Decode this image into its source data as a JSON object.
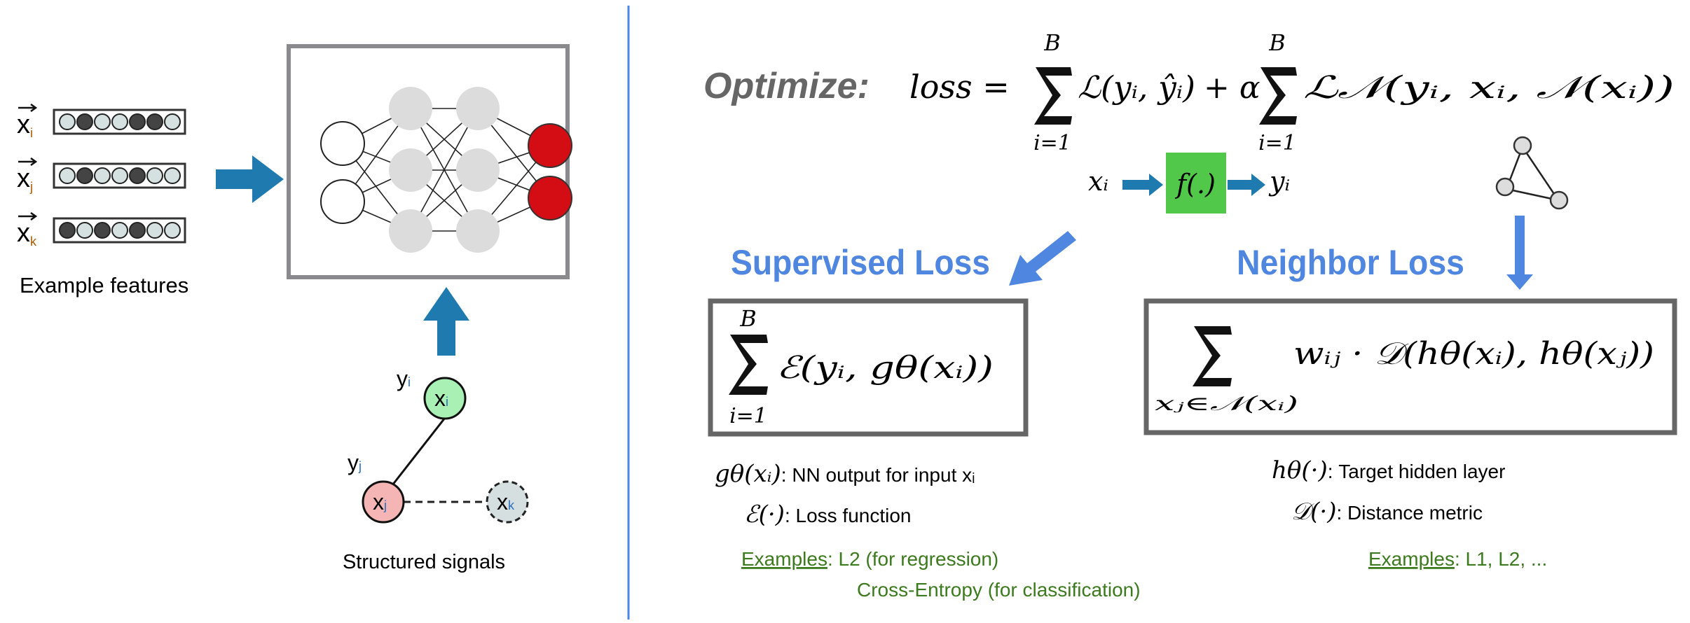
{
  "left": {
    "features": {
      "rows": [
        {
          "label": "x",
          "sub": "i",
          "pattern": [
            0,
            1,
            0,
            0,
            1,
            1,
            0
          ]
        },
        {
          "label": "x",
          "sub": "j",
          "pattern": [
            0,
            1,
            0,
            0,
            1,
            0,
            0
          ]
        },
        {
          "label": "x",
          "sub": "k",
          "pattern": [
            1,
            0,
            1,
            0,
            1,
            0,
            0
          ]
        }
      ],
      "caption": "Example features"
    },
    "graph": {
      "nodes": [
        {
          "label": "x",
          "sub": "i",
          "tag": "y",
          "tag_sub": "i"
        },
        {
          "label": "x",
          "sub": "j",
          "tag": "y",
          "tag_sub": "j"
        },
        {
          "label": "x",
          "sub": "k"
        }
      ],
      "caption": "Structured signals"
    }
  },
  "right": {
    "optimize_label": "Optimize:",
    "loss_eq": "loss =",
    "sum1": {
      "top": "B",
      "bottom": "i=1",
      "term": "ℒ(yᵢ, ŷᵢ)"
    },
    "plus_alpha": "+ α",
    "sum2": {
      "top": "B",
      "bottom": "i=1",
      "term": "ℒ𝒩(yᵢ, xᵢ, 𝒩(xᵢ))"
    },
    "flow": {
      "input": "xᵢ",
      "func": "f(.)",
      "output": "yᵢ"
    },
    "supervised": {
      "title": "Supervised Loss",
      "box": {
        "top": "B",
        "bottom": "i=1",
        "term": "ℰ(yᵢ, gθ(xᵢ))"
      },
      "defs": [
        {
          "symbol": "gθ(xᵢ)",
          "text": ": NN output for input xᵢ"
        },
        {
          "symbol": "ℰ(·)",
          "text": ": Loss function"
        }
      ],
      "examples_label": "Examples",
      "examples": ": L2 (for regression)",
      "examples_2": "Cross-Entropy (for classification)"
    },
    "neighbor": {
      "title": "Neighbor Loss",
      "box": {
        "bottom": "xⱼ∈𝒩(xᵢ)",
        "term": "wᵢⱼ · 𝒟(hθ(xᵢ), hθ(xⱼ))"
      },
      "defs": [
        {
          "symbol": "hθ(·)",
          "text": ": Target hidden layer"
        },
        {
          "symbol": "𝒟(·)",
          "text": ": Distance metric"
        }
      ],
      "examples_label": "Examples",
      "examples": ": L1, L2, ..."
    }
  },
  "colors": {
    "arrow_teal": "#1f7ab0",
    "accent_blue": "#4f86e0",
    "output_red": "#d40c14",
    "hidden_gray": "#dcdcdc",
    "func_green": "#52c84a",
    "examples_green": "#3c7a1e",
    "divider": "#4a86e8",
    "node_green": "#a8f0b4",
    "node_pink": "#f5b5b5",
    "node_gray": "#d5dfe0"
  }
}
